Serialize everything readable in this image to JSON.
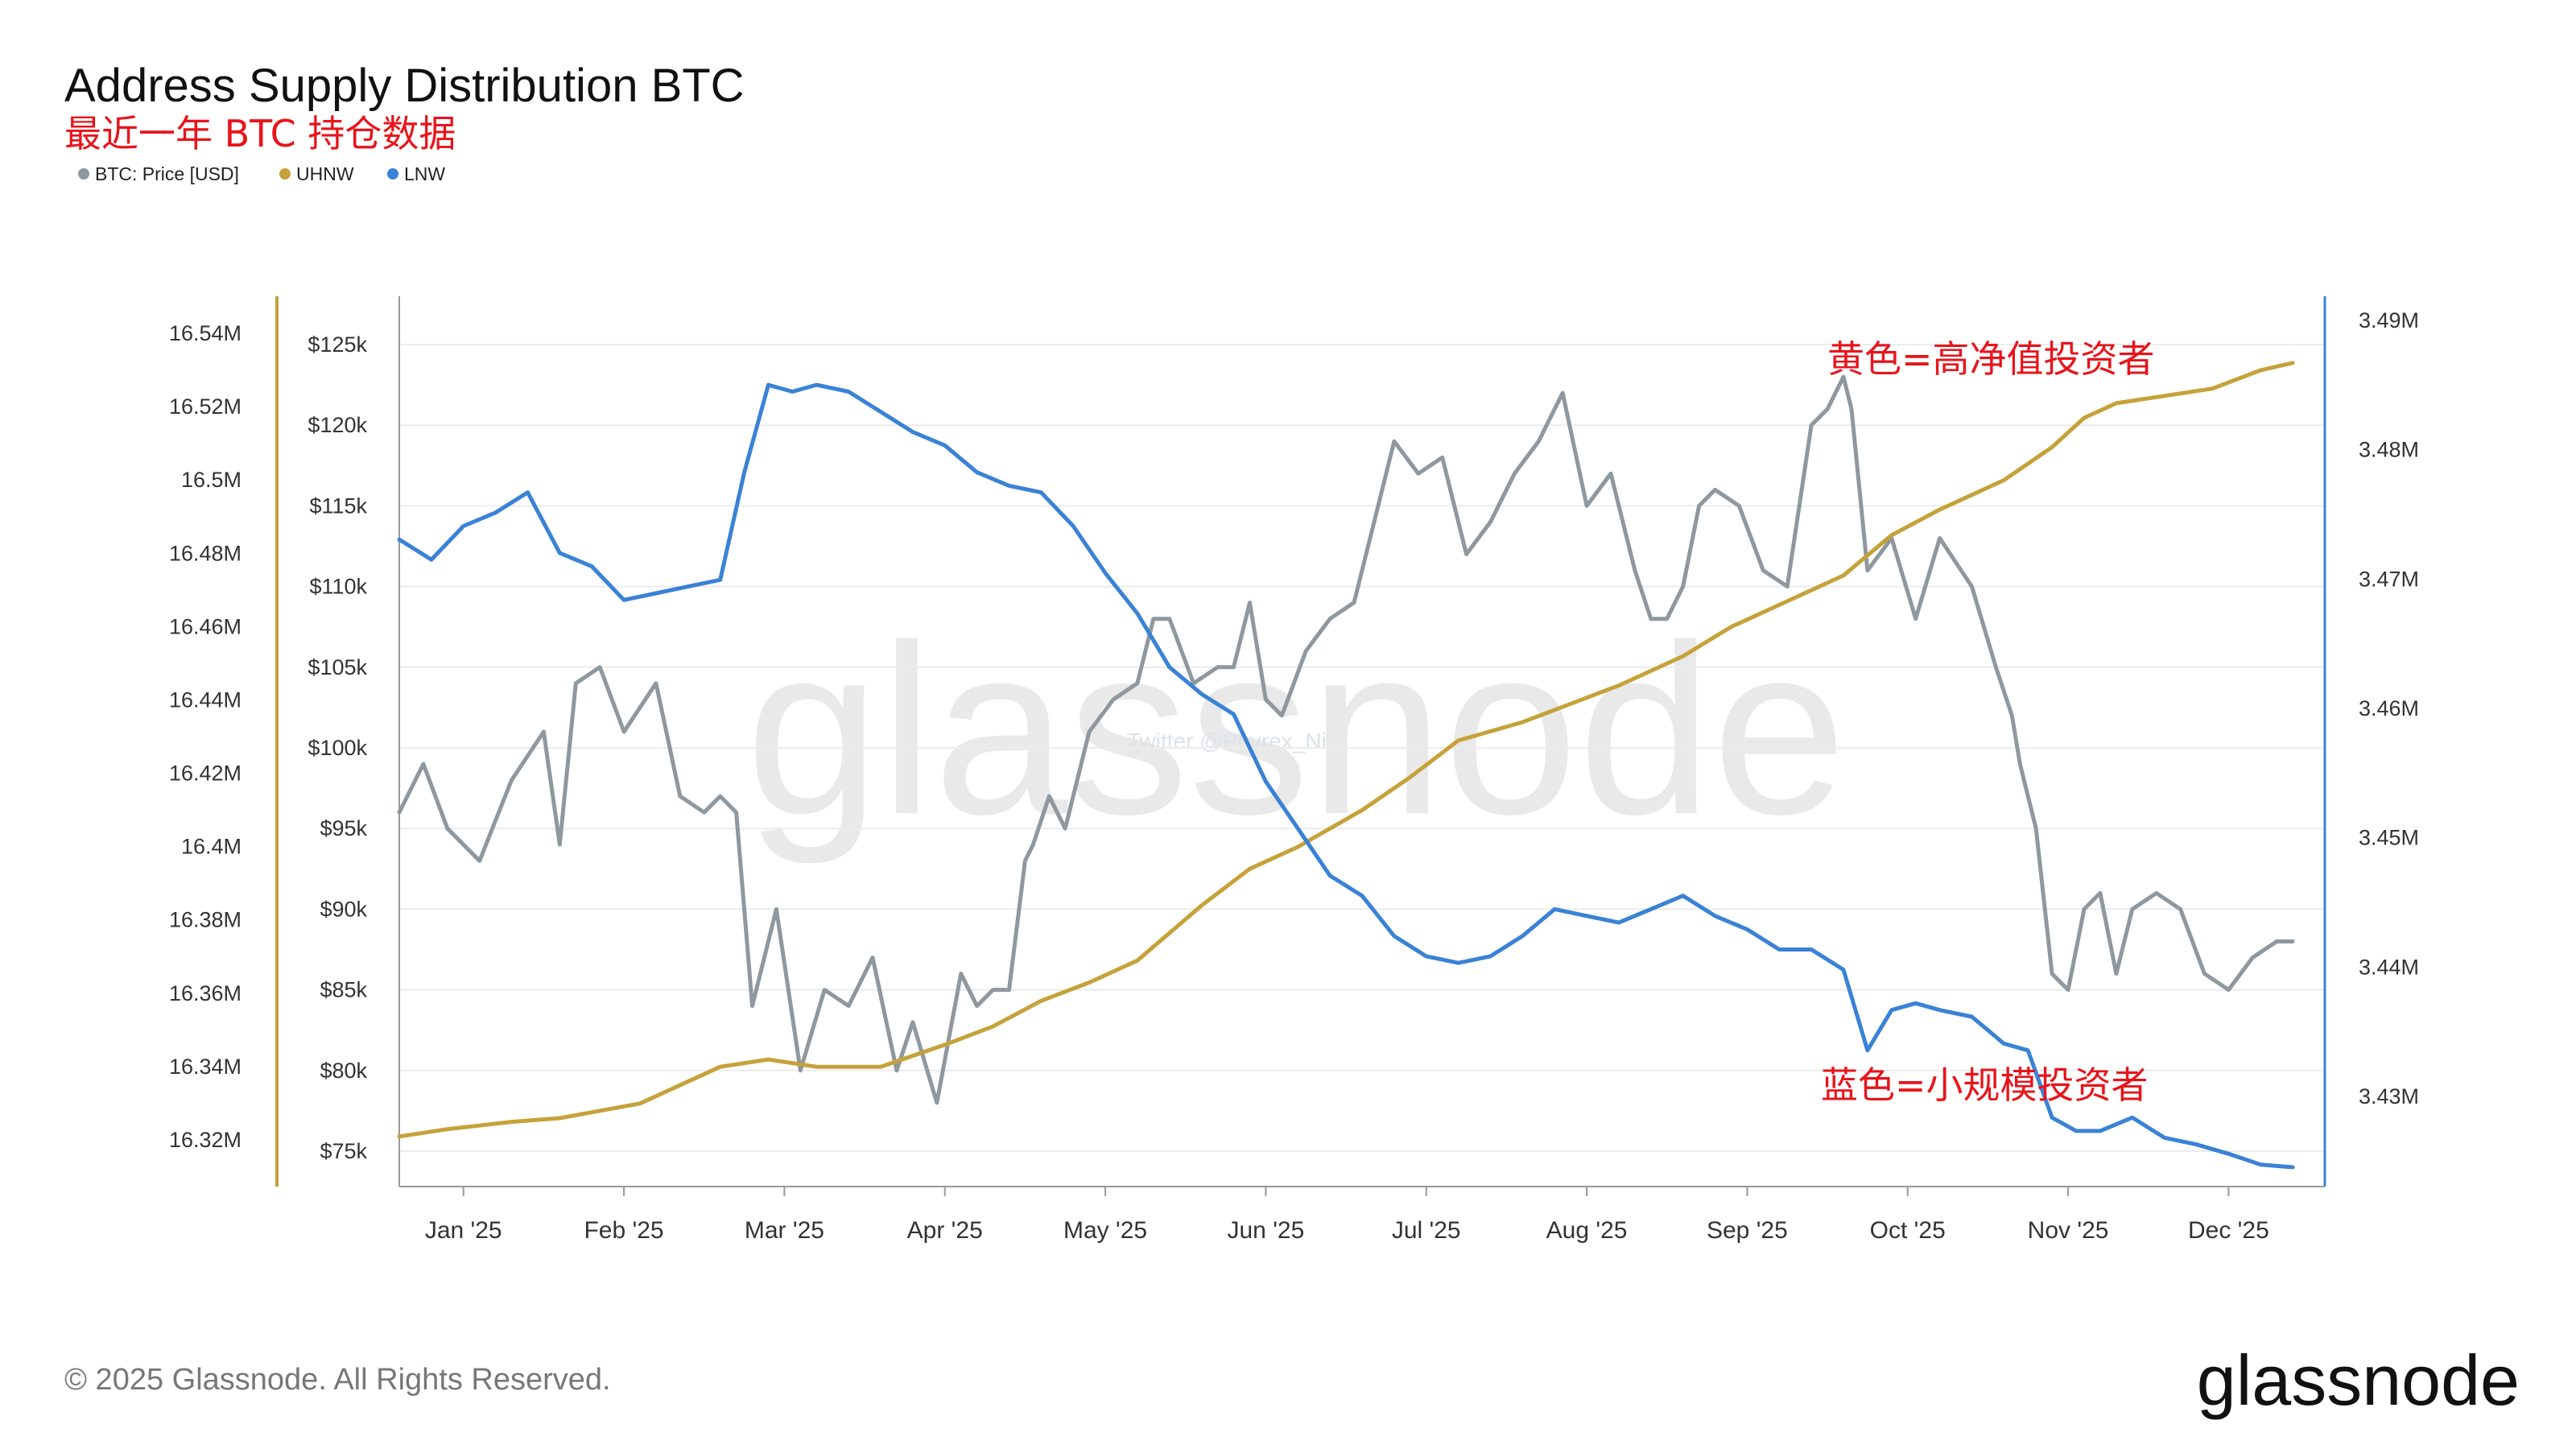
{
  "header": {
    "title": "Address Supply Distribution BTC",
    "subtitle": "最近一年 BTC 持仓数据"
  },
  "legend": [
    {
      "label": "BTC: Price [USD]",
      "color": "#8e989e"
    },
    {
      "label": "UHNW",
      "color": "#c5a23a"
    },
    {
      "label": "LNW",
      "color": "#3a82d6"
    }
  ],
  "annotations": {
    "yellow": "黄色=高净值投资者",
    "blue": "蓝色=小规模投资者",
    "color": "#e8141b"
  },
  "watermark": "glassnode",
  "watermark_small": "Twitter @Phyrex_Ni",
  "footer": {
    "copyright": "© 2025 Glassnode. All Rights Reserved.",
    "logo": "glassnode"
  },
  "chart_data": {
    "type": "line",
    "x_ticks": [
      "Jan '25",
      "Feb '25",
      "Mar '25",
      "Apr '25",
      "May '25",
      "Jun '25",
      "Jul '25",
      "Aug '25",
      "Sep '25",
      "Oct '25",
      "Nov '25",
      "Dec '25"
    ],
    "axes": {
      "uhnw": {
        "ticks": [
          "16.54M",
          "16.52M",
          "16.5M",
          "16.48M",
          "16.46M",
          "16.44M",
          "16.42M",
          "16.4M",
          "16.38M",
          "16.36M",
          "16.34M",
          "16.32M"
        ],
        "range": [
          16.32,
          16.54
        ],
        "color": "#c5a23a"
      },
      "price": {
        "ticks": [
          "$125k",
          "$120k",
          "$115k",
          "$110k",
          "$105k",
          "$100k",
          "$95k",
          "$90k",
          "$85k",
          "$80k",
          "$75k"
        ],
        "range": [
          75,
          125
        ]
      },
      "lnw": {
        "ticks": [
          "3.49M",
          "3.48M",
          "3.47M",
          "3.46M",
          "3.45M",
          "3.44M",
          "3.43M"
        ],
        "range": [
          3.43,
          3.49
        ],
        "color": "#3a82d6"
      }
    },
    "x_range": [
      0,
      12
    ],
    "series": [
      {
        "name": "BTC: Price [USD]",
        "axis": "price",
        "color": "#8e989e",
        "x": [
          0,
          0.15,
          0.3,
          0.5,
          0.7,
          0.9,
          1.0,
          1.1,
          1.25,
          1.4,
          1.6,
          1.75,
          1.9,
          2.0,
          2.1,
          2.2,
          2.35,
          2.5,
          2.65,
          2.8,
          2.95,
          3.1,
          3.2,
          3.35,
          3.5,
          3.6,
          3.7,
          3.8,
          3.9,
          3.95,
          4.05,
          4.15,
          4.3,
          4.45,
          4.6,
          4.7,
          4.8,
          4.95,
          5.1,
          5.2,
          5.3,
          5.4,
          5.5,
          5.65,
          5.8,
          5.95,
          6.05,
          6.2,
          6.35,
          6.5,
          6.65,
          6.8,
          6.95,
          7.1,
          7.25,
          7.4,
          7.55,
          7.7,
          7.8,
          7.9,
          8.0,
          8.1,
          8.2,
          8.35,
          8.5,
          8.65,
          8.8,
          8.9,
          9.0,
          9.05,
          9.15,
          9.3,
          9.45,
          9.6,
          9.8,
          9.95,
          10.05,
          10.1,
          10.2,
          10.3,
          10.4,
          10.5,
          10.6,
          10.7,
          10.8,
          10.95,
          11.1,
          11.25,
          11.4,
          11.55,
          11.7,
          11.8
        ],
        "values": [
          96,
          99,
          95,
          93,
          98,
          101,
          94,
          104,
          105,
          101,
          104,
          97,
          96,
          97,
          96,
          84,
          90,
          80,
          85,
          84,
          87,
          80,
          83,
          78,
          86,
          84,
          85,
          85,
          93,
          94,
          97,
          95,
          101,
          103,
          104,
          108,
          108,
          104,
          105,
          105,
          109,
          103,
          102,
          106,
          108,
          109,
          113,
          119,
          117,
          118,
          112,
          114,
          117,
          119,
          122,
          115,
          117,
          111,
          108,
          108,
          110,
          115,
          116,
          115,
          111,
          110,
          120,
          121,
          123,
          121,
          111,
          113,
          108,
          113,
          110,
          105,
          102,
          99,
          95,
          86,
          85,
          90,
          91,
          86,
          90,
          91,
          90,
          86,
          85,
          87,
          88,
          88
        ]
      },
      {
        "name": "UHNW",
        "axis": "uhnw",
        "color": "#c5a23a",
        "x": [
          0,
          0.3,
          0.7,
          1.0,
          1.5,
          2.0,
          2.3,
          2.6,
          3.0,
          3.4,
          3.7,
          4.0,
          4.3,
          4.6,
          5.0,
          5.3,
          5.6,
          6.0,
          6.3,
          6.6,
          7.0,
          7.3,
          7.6,
          8.0,
          8.3,
          8.6,
          9.0,
          9.3,
          9.6,
          10.0,
          10.3,
          10.5,
          10.7,
          11.0,
          11.3,
          11.6,
          11.8
        ],
        "values": [
          16.324,
          16.326,
          16.328,
          16.329,
          16.333,
          16.343,
          16.345,
          16.343,
          16.343,
          16.349,
          16.354,
          16.361,
          16.366,
          16.372,
          16.387,
          16.397,
          16.403,
          16.413,
          16.422,
          16.432,
          16.437,
          16.442,
          16.447,
          16.455,
          16.463,
          16.469,
          16.477,
          16.488,
          16.495,
          16.503,
          16.512,
          16.52,
          16.524,
          16.526,
          16.528,
          16.533,
          16.535
        ]
      },
      {
        "name": "LNW",
        "axis": "lnw",
        "color": "#3a82d6",
        "x": [
          0,
          0.2,
          0.4,
          0.6,
          0.8,
          1.0,
          1.2,
          1.4,
          1.6,
          1.8,
          2.0,
          2.15,
          2.3,
          2.45,
          2.6,
          2.8,
          3.0,
          3.2,
          3.4,
          3.6,
          3.8,
          4.0,
          4.2,
          4.4,
          4.6,
          4.8,
          5.0,
          5.2,
          5.4,
          5.6,
          5.8,
          6.0,
          6.2,
          6.4,
          6.6,
          6.8,
          7.0,
          7.2,
          7.4,
          7.6,
          7.8,
          8.0,
          8.2,
          8.4,
          8.6,
          8.8,
          9.0,
          9.15,
          9.3,
          9.45,
          9.6,
          9.8,
          10.0,
          10.15,
          10.3,
          10.45,
          10.6,
          10.8,
          11.0,
          11.2,
          11.4,
          11.6,
          11.8
        ],
        "values": [
          3.4755,
          3.474,
          3.4765,
          3.4775,
          3.479,
          3.4745,
          3.4735,
          3.471,
          3.4715,
          3.472,
          3.4725,
          3.4805,
          3.487,
          3.4865,
          3.487,
          3.4865,
          3.485,
          3.4835,
          3.4825,
          3.4805,
          3.4795,
          3.479,
          3.4765,
          3.473,
          3.47,
          3.466,
          3.464,
          3.4625,
          3.4575,
          3.454,
          3.4505,
          3.449,
          3.446,
          3.4445,
          3.444,
          3.4445,
          3.446,
          3.448,
          3.4475,
          3.447,
          3.448,
          3.449,
          3.4475,
          3.4465,
          3.445,
          3.445,
          3.4435,
          3.4375,
          3.4405,
          3.441,
          3.4405,
          3.44,
          3.438,
          3.4375,
          3.4325,
          3.4315,
          3.4315,
          3.4325,
          3.431,
          3.4305,
          3.4298,
          3.429,
          3.4288
        ]
      }
    ]
  }
}
